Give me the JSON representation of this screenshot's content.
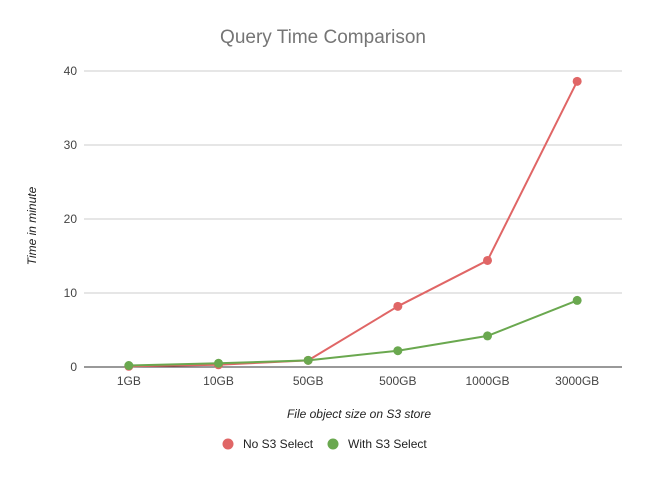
{
  "chart_data": {
    "type": "line",
    "title": "Query Time Comparison",
    "xlabel": "File object size on S3 store",
    "ylabel": "Time in minute",
    "categories": [
      "1GB",
      "10GB",
      "50GB",
      "500GB",
      "1000GB",
      "3000GB"
    ],
    "ylim": [
      0,
      40
    ],
    "yticks": [
      0,
      10,
      20,
      30,
      40
    ],
    "grid": true,
    "legend_position": "bottom",
    "series": [
      {
        "name": "No S3 Select",
        "color": "#e06666",
        "values": [
          0.1,
          0.3,
          0.9,
          8.2,
          14.4,
          38.6
        ]
      },
      {
        "name": "With S3 Select",
        "color": "#6aa84f",
        "values": [
          0.2,
          0.5,
          0.9,
          2.2,
          4.2,
          9.0
        ]
      }
    ]
  }
}
